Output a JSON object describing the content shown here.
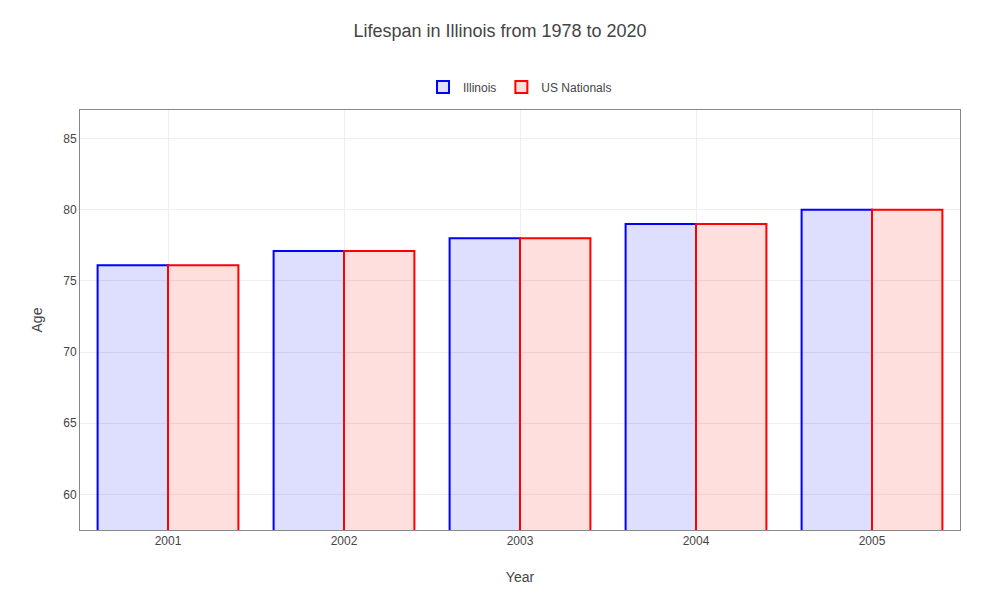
{
  "chart_data": {
    "type": "bar",
    "title": "Lifespan in Illinois from 1978 to 2020",
    "x_label": "Year",
    "y_label": "Age",
    "categories": [
      "2001",
      "2002",
      "2003",
      "2004",
      "2005"
    ],
    "series": [
      {
        "name": "Illinois",
        "color": "#0000ff",
        "values": [
          76.1,
          77.1,
          78.0,
          79.0,
          80.0
        ]
      },
      {
        "name": "US Nationals",
        "color": "#ff0000",
        "values": [
          76.1,
          77.1,
          78.0,
          79.0,
          80.0
        ]
      }
    ],
    "ylim": [
      57.5,
      87
    ],
    "yticks": [
      60,
      65,
      70,
      75,
      80,
      85
    ],
    "grid": true,
    "legend": "top"
  }
}
